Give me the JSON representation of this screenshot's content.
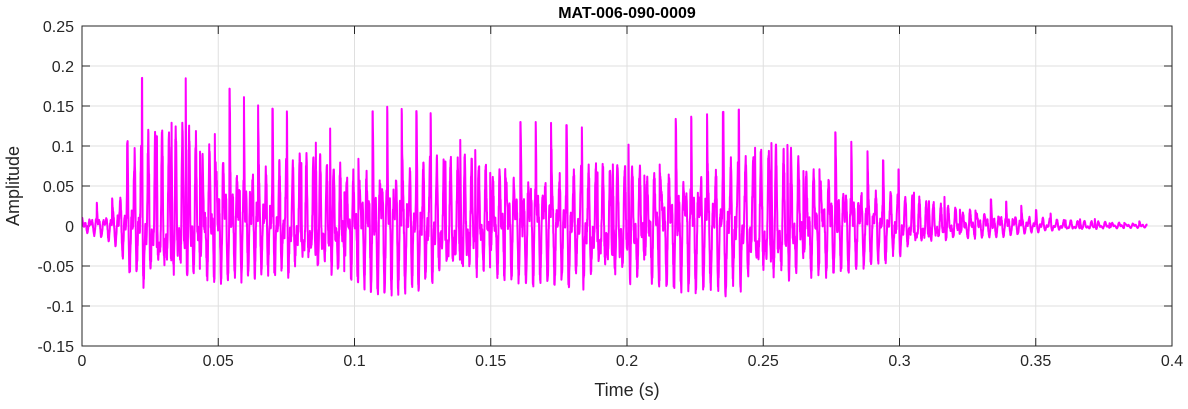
{
  "chart_data": {
    "type": "line",
    "title": "MAT-006-090-0009",
    "xlabel": "Time (s)",
    "ylabel": "Amplitude",
    "xlim": [
      0,
      0.4
    ],
    "ylim": [
      -0.15,
      0.25
    ],
    "xticks": [
      0,
      0.05,
      0.1,
      0.15,
      0.2,
      0.25,
      0.3,
      0.35,
      0.4
    ],
    "xtick_labels": [
      "0",
      "0.05",
      "0.1",
      "0.15",
      "0.2",
      "0.25",
      "0.3",
      "0.35",
      "0.4"
    ],
    "yticks": [
      -0.15,
      -0.1,
      -0.05,
      0,
      0.05,
      0.1,
      0.15,
      0.2,
      0.25
    ],
    "ytick_labels": [
      "-0.15",
      "-0.1",
      "-0.05",
      "0",
      "0.05",
      "0.1",
      "0.15",
      "0.2",
      "0.25"
    ],
    "grid": true,
    "legend": false,
    "series": [
      {
        "color": "#ff00ff",
        "sample_rate_hz": 16000,
        "duration_s": 0.391,
        "fundamental_hz": 180,
        "envelope": {
          "t": [
            0,
            0.005,
            0.01,
            0.012,
            0.016,
            0.02,
            0.024,
            0.03,
            0.038,
            0.045,
            0.055,
            0.065,
            0.08,
            0.1,
            0.11,
            0.13,
            0.15,
            0.17,
            0.19,
            0.21,
            0.23,
            0.25,
            0.26,
            0.275,
            0.29,
            0.3,
            0.31,
            0.32,
            0.33,
            0.34,
            0.35,
            0.36,
            0.37,
            0.38,
            0.391
          ],
          "pos": [
            0.01,
            0.03,
            0.02,
            0.05,
            0.09,
            0.18,
            0.19,
            0.19,
            0.2,
            0.19,
            0.17,
            0.15,
            0.14,
            0.13,
            0.15,
            0.14,
            0.13,
            0.13,
            0.12,
            0.13,
            0.14,
            0.15,
            0.15,
            0.12,
            0.09,
            0.07,
            0.05,
            0.04,
            0.035,
            0.03,
            0.02,
            0.012,
            0.01,
            0.008,
            0.005
          ],
          "neg": [
            -0.01,
            -0.02,
            -0.03,
            -0.04,
            -0.08,
            -0.11,
            -0.12,
            -0.12,
            -0.12,
            -0.12,
            -0.11,
            -0.1,
            -0.1,
            -0.12,
            -0.14,
            -0.12,
            -0.11,
            -0.12,
            -0.12,
            -0.13,
            -0.13,
            -0.13,
            -0.12,
            -0.1,
            -0.08,
            -0.06,
            -0.04,
            -0.03,
            -0.025,
            -0.02,
            -0.012,
            -0.009,
            -0.007,
            -0.005,
            -0.003
          ]
        }
      }
    ]
  }
}
